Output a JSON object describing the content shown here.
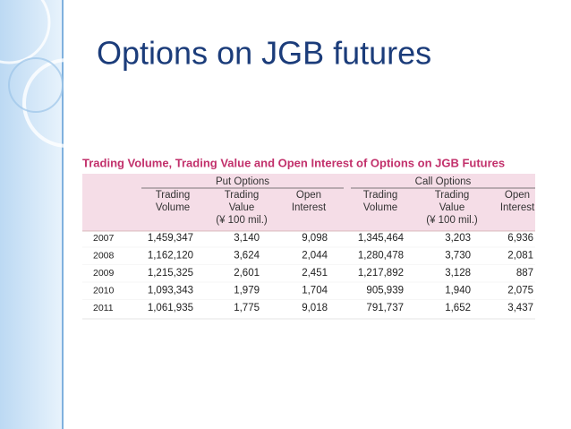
{
  "title": "Options on JGB futures",
  "table": {
    "caption": "Trading Volume, Trading Value and Open Interest of Options on JGB Futures",
    "groups": [
      "Put Options",
      "Call Options"
    ],
    "columns": [
      [
        "Trading",
        "Volume"
      ],
      [
        "Trading",
        "Value",
        "(¥ 100 mil.)"
      ],
      [
        "Open",
        "Interest"
      ],
      [
        "Trading",
        "Volume"
      ],
      [
        "Trading",
        "Value",
        "(¥ 100 mil.)"
      ],
      [
        "Open",
        "Interest"
      ]
    ],
    "rows": [
      [
        "2007",
        "1,459,347",
        "3,140",
        "9,098",
        "1,345,464",
        "3,203",
        "6,936"
      ],
      [
        "2008",
        "1,162,120",
        "3,624",
        "2,044",
        "1,280,478",
        "3,730",
        "2,081"
      ],
      [
        "2009",
        "1,215,325",
        "2,601",
        "2,451",
        "1,217,892",
        "3,128",
        "887"
      ],
      [
        "2010",
        "1,093,343",
        "1,979",
        "1,704",
        "905,939",
        "1,940",
        "2,075"
      ],
      [
        "2011",
        "1,061,935",
        "1,775",
        "9,018",
        "791,737",
        "1,652",
        "3,437"
      ]
    ]
  }
}
